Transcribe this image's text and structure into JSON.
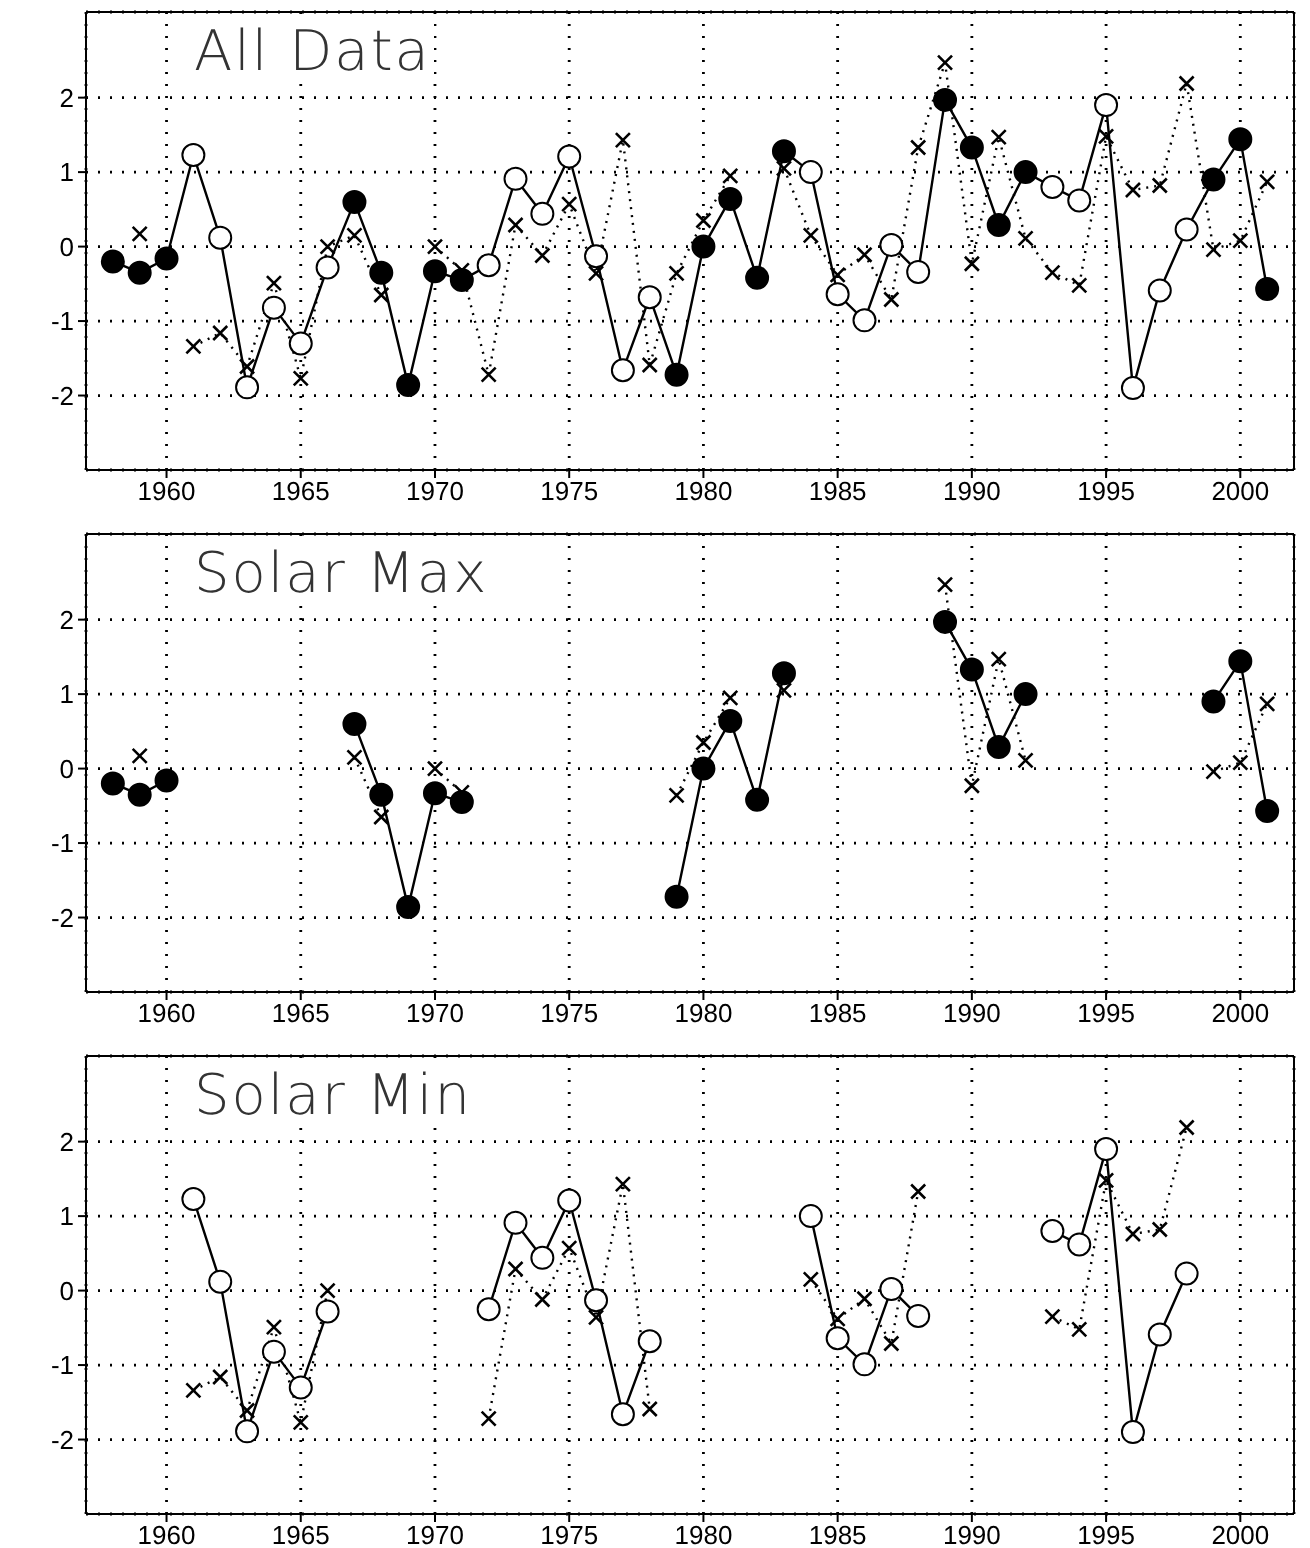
{
  "chart_data": [
    {
      "type": "line",
      "title": "All Data",
      "x": [
        1958,
        1959,
        1960,
        1961,
        1962,
        1963,
        1964,
        1965,
        1966,
        1967,
        1968,
        1969,
        1970,
        1971,
        1972,
        1973,
        1974,
        1975,
        1976,
        1977,
        1978,
        1979,
        1980,
        1981,
        1982,
        1983,
        1984,
        1985,
        1986,
        1987,
        1988,
        1989,
        1990,
        1991,
        1992,
        1993,
        1994,
        1995,
        1996,
        1997,
        1998,
        1999,
        2000,
        2001
      ],
      "xlim": [
        1957,
        2002
      ],
      "ylim": [
        -3,
        3.15
      ],
      "xticks": [
        1960,
        1965,
        1970,
        1975,
        1980,
        1985,
        1990,
        1995,
        2000
      ],
      "yticks": [
        -2,
        -1,
        0,
        1,
        2
      ],
      "grid": true,
      "series": [
        {
          "color": "#000000",
          "marker": "circle",
          "line_style": "solid",
          "values": [
            -0.2,
            -0.35,
            -0.16,
            1.23,
            0.12,
            -1.89,
            -0.82,
            -1.3,
            -0.28,
            0.6,
            -0.35,
            -1.86,
            -0.33,
            -0.45,
            -0.25,
            0.91,
            0.44,
            1.21,
            -0.13,
            -1.66,
            -0.68,
            -1.72,
            0.0,
            0.64,
            -0.42,
            1.28,
            1.0,
            -0.64,
            -0.99,
            0.02,
            -0.34,
            1.97,
            1.33,
            0.29,
            1.0,
            0.8,
            0.62,
            1.9,
            -1.9,
            -0.59,
            0.23,
            0.9,
            1.44,
            -0.57
          ],
          "colors": [
            "#000000",
            "#000000",
            "#000000",
            "#ffffff",
            "#ffffff",
            "#ffffff",
            "#ffffff",
            "#ffffff",
            "#ffffff",
            "#000000",
            "#000000",
            "#000000",
            "#000000",
            "#000000",
            "#ffffff",
            "#ffffff",
            "#ffffff",
            "#ffffff",
            "#ffffff",
            "#ffffff",
            "#ffffff",
            "#000000",
            "#000000",
            "#000000",
            "#000000",
            "#000000",
            "#ffffff",
            "#ffffff",
            "#ffffff",
            "#ffffff",
            "#ffffff",
            "#000000",
            "#000000",
            "#000000",
            "#000000",
            "#ffffff",
            "#ffffff",
            "#ffffff",
            "#ffffff",
            "#ffffff",
            "#ffffff",
            "#000000",
            "#000000",
            "#000000"
          ]
        },
        {
          "color": "#000000",
          "marker": "cross",
          "line_style": "dotted",
          "values": [
            null,
            0.17,
            null,
            -1.34,
            -1.16,
            -1.61,
            -0.49,
            -1.77,
            0.0,
            0.15,
            -0.65,
            null,
            0.0,
            -0.32,
            -1.72,
            0.29,
            -0.12,
            0.57,
            -0.36,
            1.43,
            -1.59,
            -0.36,
            0.35,
            0.95,
            null,
            1.05,
            0.15,
            -0.38,
            -0.11,
            -0.71,
            1.33,
            2.47,
            -0.23,
            1.47,
            0.11,
            -0.35,
            -0.52,
            1.48,
            0.76,
            0.82,
            2.19,
            -0.04,
            0.08,
            0.87
          ]
        }
      ]
    },
    {
      "type": "line",
      "title": "Solar Max",
      "x": [
        1958,
        1959,
        1960,
        1961,
        1962,
        1963,
        1964,
        1965,
        1966,
        1967,
        1968,
        1969,
        1970,
        1971,
        1972,
        1973,
        1974,
        1975,
        1976,
        1977,
        1978,
        1979,
        1980,
        1981,
        1982,
        1983,
        1984,
        1985,
        1986,
        1987,
        1988,
        1989,
        1990,
        1991,
        1992,
        1993,
        1994,
        1995,
        1996,
        1997,
        1998,
        1999,
        2000,
        2001
      ],
      "xlim": [
        1957,
        2002
      ],
      "ylim": [
        -3,
        3.15
      ],
      "xticks": [
        1960,
        1965,
        1970,
        1975,
        1980,
        1985,
        1990,
        1995,
        2000
      ],
      "yticks": [
        -2,
        -1,
        0,
        1,
        2
      ],
      "grid": true,
      "series": [
        {
          "color": "#000000",
          "marker": "circle",
          "line_style": "solid",
          "values": [
            -0.2,
            -0.35,
            -0.16,
            null,
            null,
            null,
            null,
            null,
            null,
            0.6,
            -0.35,
            -1.86,
            -0.33,
            -0.45,
            null,
            null,
            null,
            null,
            null,
            null,
            null,
            -1.72,
            0.0,
            0.64,
            -0.42,
            1.28,
            null,
            null,
            null,
            null,
            null,
            1.97,
            1.33,
            0.29,
            1.0,
            null,
            null,
            null,
            null,
            null,
            null,
            0.9,
            1.44,
            -0.57
          ]
        },
        {
          "color": "#000000",
          "marker": "cross",
          "line_style": "dotted",
          "values": [
            null,
            0.17,
            null,
            null,
            null,
            null,
            null,
            null,
            null,
            0.15,
            -0.65,
            null,
            0.0,
            -0.32,
            null,
            null,
            null,
            null,
            null,
            null,
            null,
            -0.36,
            0.35,
            0.95,
            null,
            1.05,
            null,
            null,
            null,
            null,
            null,
            2.47,
            -0.23,
            1.47,
            0.11,
            null,
            null,
            null,
            null,
            null,
            null,
            -0.04,
            0.08,
            0.87
          ]
        }
      ]
    },
    {
      "type": "line",
      "title": "Solar Min",
      "x": [
        1961,
        1962,
        1963,
        1964,
        1965,
        1966,
        1967,
        1968,
        1969,
        1970,
        1971,
        1972,
        1973,
        1974,
        1975,
        1976,
        1977,
        1978,
        1979,
        1980,
        1981,
        1982,
        1983,
        1984,
        1985,
        1986,
        1987,
        1988,
        1989,
        1990,
        1991,
        1992,
        1993,
        1994,
        1995,
        1996,
        1997,
        1998
      ],
      "xlim": [
        1957,
        2002
      ],
      "ylim": [
        -3,
        3.15
      ],
      "xticks": [
        1960,
        1965,
        1970,
        1975,
        1980,
        1985,
        1990,
        1995,
        2000
      ],
      "yticks": [
        -2,
        -1,
        0,
        1,
        2
      ],
      "grid": true,
      "series": [
        {
          "color": "#000000",
          "marker": "circle",
          "line_style": "solid",
          "values": [
            1.23,
            0.12,
            -1.89,
            -0.82,
            -1.3,
            -0.28,
            null,
            null,
            null,
            null,
            null,
            -0.25,
            0.91,
            0.44,
            1.21,
            -0.13,
            -1.66,
            -0.68,
            null,
            null,
            null,
            null,
            null,
            1.0,
            -0.64,
            -0.99,
            0.02,
            -0.34,
            null,
            null,
            null,
            null,
            0.8,
            0.62,
            1.9,
            -1.9,
            -0.59,
            0.23
          ],
          "colors": [
            "#ffffff",
            "#ffffff",
            "#ffffff",
            "#ffffff",
            "#ffffff",
            "#ffffff",
            null,
            null,
            null,
            null,
            null,
            "#ffffff",
            "#ffffff",
            "#ffffff",
            "#ffffff",
            "#ffffff",
            "#ffffff",
            "#ffffff",
            null,
            null,
            null,
            null,
            null,
            "#ffffff",
            "#ffffff",
            "#ffffff",
            "#ffffff",
            "#ffffff",
            null,
            null,
            null,
            null,
            "#ffffff",
            "#ffffff",
            "#ffffff",
            "#ffffff",
            "#ffffff",
            "#ffffff"
          ]
        },
        {
          "color": "#000000",
          "marker": "cross",
          "line_style": "dotted",
          "values": [
            -1.34,
            -1.16,
            -1.61,
            -0.49,
            -1.77,
            0.0,
            null,
            null,
            null,
            null,
            null,
            -1.72,
            0.29,
            -0.12,
            0.57,
            -0.36,
            1.43,
            -1.59,
            null,
            null,
            null,
            null,
            null,
            0.15,
            -0.38,
            -0.11,
            -0.71,
            1.33,
            null,
            null,
            null,
            null,
            -0.35,
            -0.52,
            1.48,
            0.76,
            0.82,
            2.19
          ]
        }
      ]
    }
  ]
}
